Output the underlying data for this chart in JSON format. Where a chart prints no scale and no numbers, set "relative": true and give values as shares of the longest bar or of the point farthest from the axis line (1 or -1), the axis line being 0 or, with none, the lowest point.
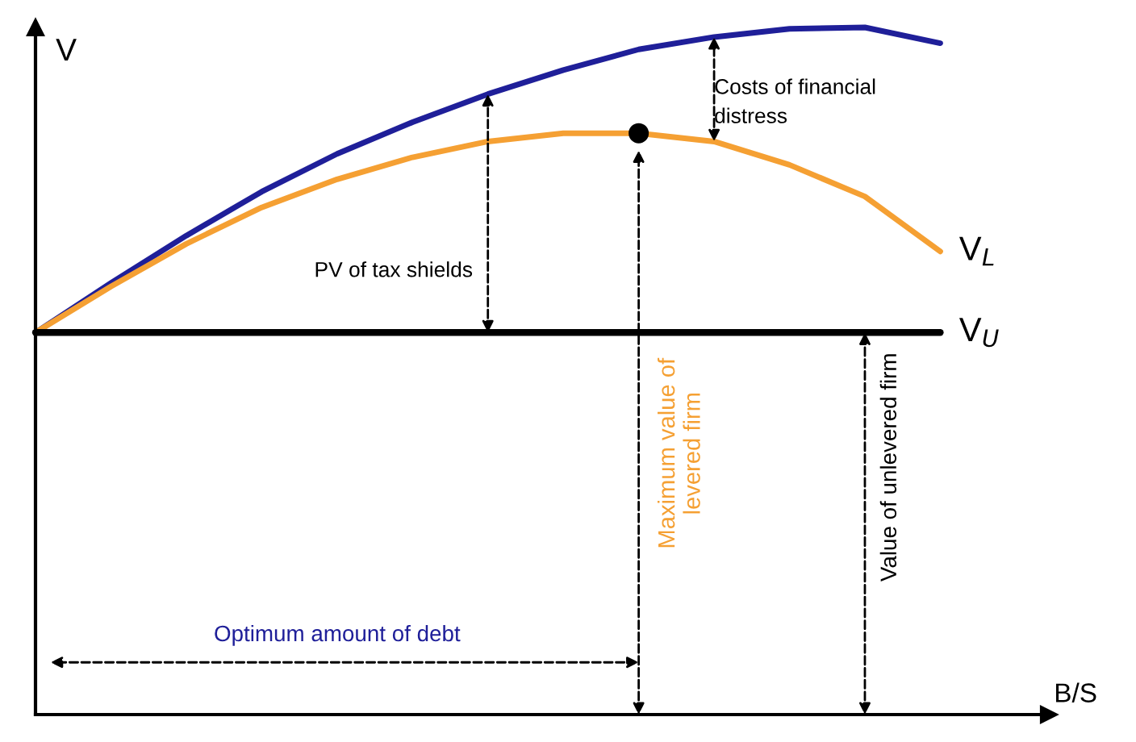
{
  "chart_data": {
    "type": "line",
    "relative": true,
    "xlabel": "B/S",
    "ylabel": "V",
    "categories": [
      null,
      null,
      null,
      null,
      null,
      null,
      null,
      null,
      null,
      null,
      null,
      null,
      null
    ],
    "series": [
      {
        "color": "#1f1f99",
        "values": [
          0.556,
          0.628,
          0.697,
          0.761,
          0.816,
          0.862,
          0.903,
          0.938,
          0.968,
          0.986,
          0.998,
          1.0,
          0.977
        ]
      },
      {
        "name": "V$_{L}$",
        "color": "#f5a033",
        "values": [
          0.556,
          0.623,
          0.685,
          0.738,
          0.779,
          0.811,
          0.834,
          0.846,
          0.846,
          0.834,
          0.8,
          0.754,
          0.674
        ]
      },
      {
        "name": "V$_{U}$",
        "color": "#000000",
        "values": [
          0.556,
          0.556,
          0.556,
          0.556,
          0.556,
          0.556,
          0.556,
          0.556,
          0.556,
          0.556,
          0.556,
          0.556,
          0.556
        ]
      }
    ],
    "annotations": [
      "Costs of financial\ndistress",
      "PV of tax shields",
      "Maximum value of\nlevered firm",
      "Value of unlevered firm",
      "Optimum amount of debt"
    ],
    "grid": false,
    "legend": false,
    "marker": "none",
    "line_style": "solid"
  }
}
